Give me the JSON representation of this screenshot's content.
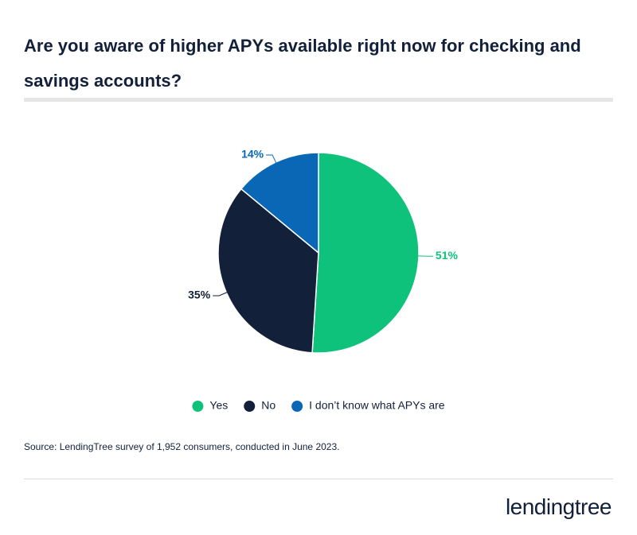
{
  "chart_data": {
    "type": "pie",
    "title": "Are you aware of higher APYs available right now for checking and savings accounts?",
    "categories": [
      "Yes",
      "No",
      "I don’t know what APYs are"
    ],
    "values": [
      51,
      35,
      14
    ],
    "value_labels": [
      "51%",
      "35%",
      "14%"
    ],
    "colors": [
      "#0fc27b",
      "#13203a",
      "#0a67b5"
    ],
    "source": "Source: LendingTree survey of 1,952 consumers, conducted in June 2023.",
    "logo": "lendingtree"
  }
}
